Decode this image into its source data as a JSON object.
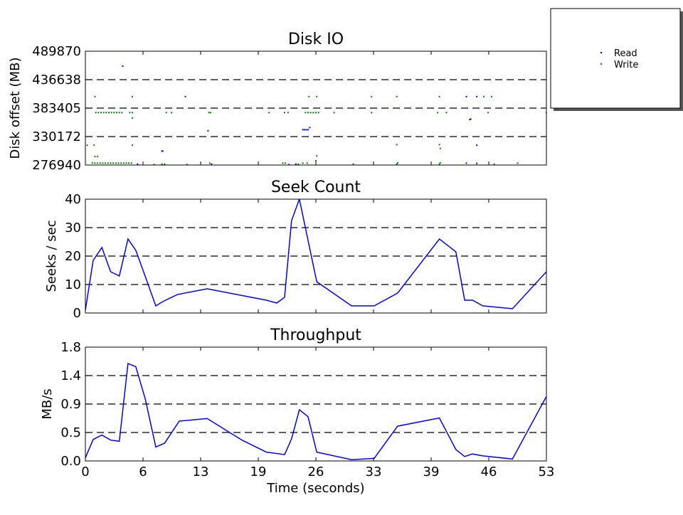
{
  "chart_data": [
    {
      "type": "scatter",
      "title": "Disk IO",
      "ylabel": "Disk offset (MB)",
      "xlim": [
        0,
        53
      ],
      "ylim": [
        276940,
        489870
      ],
      "yticks": [
        "489870",
        "436638",
        "383405",
        "330172",
        "276940"
      ],
      "ytick_values": [
        489870,
        436638,
        383405,
        330172,
        276940
      ],
      "grid": "horizontal-dashed",
      "legend": {
        "placement": "outside-top-right",
        "entries": [
          "Read",
          "Write"
        ]
      },
      "series": [
        {
          "name": "Read",
          "color": "#0000ff",
          "points": [
            [
              4.3,
              462000
            ],
            [
              11.5,
              405000
            ],
            [
              14.1,
              341000
            ],
            [
              8.8,
              303000
            ],
            [
              8.9,
              303000
            ],
            [
              25.0,
              343000
            ],
            [
              25.2,
              343000
            ],
            [
              25.4,
              343000
            ],
            [
              25.6,
              343000
            ],
            [
              25.8,
              347000
            ],
            [
              23.4,
              277600
            ],
            [
              24.2,
              278600
            ],
            [
              43.8,
              405000
            ],
            [
              45.0,
              405000
            ],
            [
              44.2,
              362000
            ],
            [
              44.3,
              363000
            ],
            [
              45.0,
              314000
            ],
            [
              43.8,
              280500
            ],
            [
              45.0,
              280000
            ],
            [
              6.0,
              278600
            ],
            [
              7.9,
              277600
            ],
            [
              11.7,
              277600
            ],
            [
              14.5,
              278600
            ]
          ]
        },
        {
          "name": "Write",
          "color": "#008000",
          "points": [
            [
              1.1,
              405000
            ],
            [
              5.4,
              405000
            ],
            [
              1.2,
              375000
            ],
            [
              1.5,
              375000
            ],
            [
              1.8,
              375000
            ],
            [
              2.1,
              375000
            ],
            [
              2.4,
              375000
            ],
            [
              2.7,
              375000
            ],
            [
              3.0,
              375000
            ],
            [
              3.3,
              375000
            ],
            [
              3.6,
              375000
            ],
            [
              3.9,
              375000
            ],
            [
              4.2,
              375000
            ],
            [
              5.1,
              375000
            ],
            [
              5.4,
              375000
            ],
            [
              9.3,
              375000
            ],
            [
              9.9,
              375000
            ],
            [
              14.2,
              375000
            ],
            [
              14.4,
              375000
            ],
            [
              21.1,
              375000
            ],
            [
              22.9,
              375000
            ],
            [
              23.3,
              375000
            ],
            [
              25.3,
              375000
            ],
            [
              25.6,
              375000
            ],
            [
              25.9,
              375000
            ],
            [
              26.2,
              375000
            ],
            [
              26.5,
              375000
            ],
            [
              26.8,
              375000
            ],
            [
              28.6,
              375000
            ],
            [
              32.9,
              375000
            ],
            [
              40.5,
              375000
            ],
            [
              41.5,
              375000
            ],
            [
              46.3,
              375000
            ],
            [
              53.0,
              375000
            ],
            [
              5.4,
              365000
            ],
            [
              25.7,
              405000
            ],
            [
              26.6,
              405000
            ],
            [
              32.9,
              405000
            ],
            [
              35.8,
              405000
            ],
            [
              40.7,
              405000
            ],
            [
              45.8,
              405000
            ],
            [
              46.7,
              405000
            ],
            [
              1.0,
              314000
            ],
            [
              0.2,
              314000
            ],
            [
              5.4,
              314000
            ],
            [
              35.8,
              315000
            ],
            [
              40.7,
              315000
            ],
            [
              40.8,
              308000
            ],
            [
              1.1,
              293000
            ],
            [
              1.4,
              293000
            ],
            [
              26.6,
              294000
            ],
            [
              0.8,
              281000
            ],
            [
              1.1,
              280500
            ],
            [
              1.4,
              280500
            ],
            [
              1.7,
              280500
            ],
            [
              2.0,
              280500
            ],
            [
              2.3,
              280500
            ],
            [
              2.6,
              280500
            ],
            [
              2.9,
              280500
            ],
            [
              3.2,
              280500
            ],
            [
              3.5,
              280500
            ],
            [
              3.8,
              280500
            ],
            [
              4.1,
              280500
            ],
            [
              4.4,
              280500
            ],
            [
              4.7,
              280500
            ],
            [
              5.0,
              280500
            ],
            [
              5.3,
              280500
            ],
            [
              8.8,
              278600
            ],
            [
              9.1,
              278600
            ],
            [
              14.3,
              280500
            ],
            [
              22.7,
              280500
            ],
            [
              23.0,
              280500
            ],
            [
              24.5,
              278600
            ],
            [
              25.0,
              280500
            ],
            [
              25.5,
              280500
            ],
            [
              26.5,
              285000
            ],
            [
              30.8,
              278600
            ],
            [
              35.8,
              278600
            ],
            [
              35.9,
              281000
            ],
            [
              40.7,
              278600
            ],
            [
              40.8,
              281000
            ],
            [
              47.0,
              278600
            ],
            [
              49.7,
              280500
            ]
          ]
        }
      ]
    },
    {
      "type": "line",
      "title": "Seek Count",
      "ylabel": "Seeks / sec",
      "xlim": [
        0,
        53
      ],
      "ylim": [
        0,
        40
      ],
      "yticks": [
        "0",
        "10",
        "20",
        "30",
        "40"
      ],
      "ytick_values": [
        0,
        10,
        20,
        30,
        40
      ],
      "grid": "horizontal-dashed",
      "series": [
        {
          "color": "#0000ff",
          "x": [
            0,
            0.9,
            1.9,
            2.9,
            3.9,
            4.9,
            5.8,
            6.4,
            8.1,
            8.9,
            10.6,
            14.0,
            20.8,
            22.0,
            22.9,
            23.7,
            24.6,
            26.6,
            30.6,
            33.2,
            35.9,
            40.7,
            42.6,
            43.6,
            44.5,
            45.7,
            49.1,
            53.0
          ],
          "values": [
            1,
            18.5,
            23,
            14.5,
            13,
            26,
            22,
            17,
            2.5,
            4,
            6.5,
            8.5,
            4.5,
            3.5,
            5.5,
            32.5,
            40,
            11,
            2.5,
            2.5,
            7,
            26,
            21.5,
            4.5,
            4.5,
            2.5,
            1.5,
            14.5
          ]
        }
      ]
    },
    {
      "type": "line",
      "title": "Throughput",
      "ylabel": "MB/s",
      "xlabel": "Time (seconds)",
      "xlim": [
        0,
        53
      ],
      "ylim": [
        0,
        1.8
      ],
      "xticks": [
        "0",
        "6",
        "13",
        "19",
        "26",
        "33",
        "39",
        "46",
        "53"
      ],
      "xtick_values": [
        0,
        6.625,
        13.25,
        19.875,
        26.5,
        33.125,
        39.75,
        46.375,
        53
      ],
      "yticks": [
        "0.0",
        "0.5",
        "0.9",
        "1.4",
        "1.8"
      ],
      "ytick_values": [
        0,
        0.45,
        0.9,
        1.35,
        1.8
      ],
      "grid": "horizontal-dashed",
      "series": [
        {
          "color": "#0000ff",
          "x": [
            0,
            0.9,
            1.9,
            2.9,
            3.9,
            4.9,
            5.8,
            6.9,
            8.1,
            9.1,
            10.8,
            14.0,
            18.0,
            20.8,
            22.9,
            23.7,
            24.6,
            25.6,
            26.6,
            30.6,
            33.2,
            35.9,
            40.7,
            42.6,
            43.6,
            44.5,
            45.7,
            49.1,
            53.0
          ],
          "values": [
            0.05,
            0.34,
            0.41,
            0.33,
            0.31,
            1.54,
            1.49,
            0.97,
            0.22,
            0.28,
            0.63,
            0.67,
            0.33,
            0.14,
            0.1,
            0.35,
            0.81,
            0.7,
            0.14,
            0.02,
            0.04,
            0.55,
            0.68,
            0.18,
            0.07,
            0.11,
            0.08,
            0.03,
            1.02
          ]
        }
      ]
    }
  ]
}
